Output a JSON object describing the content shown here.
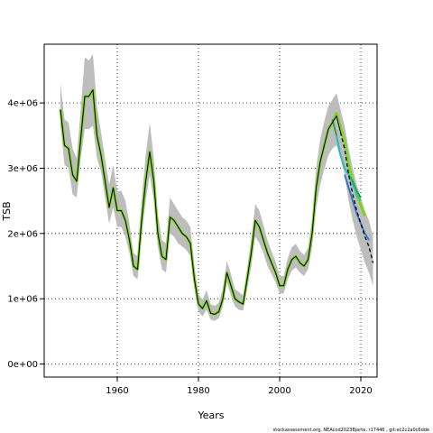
{
  "chart_data": {
    "type": "line",
    "xlabel": "Years",
    "ylabel": "TSB",
    "xlim": [
      1942,
      2024
    ],
    "ylim": [
      -200000,
      4900000
    ],
    "xticks": [
      1960,
      1980,
      2000,
      2020
    ],
    "yticks": [
      0,
      1000000,
      2000000,
      3000000,
      4000000
    ],
    "ytick_labels": [
      "0e+00",
      "1e+06",
      "2e+06",
      "3e+06",
      "4e+06"
    ],
    "grid": true,
    "footer": "stockassessment.org, NEAcod2023Bjarte, r17446 , git:ec2c2a0c6dde",
    "main": {
      "color": "#000000",
      "x": [
        1946,
        1947,
        1948,
        1949,
        1950,
        1951,
        1952,
        1953,
        1954,
        1955,
        1956,
        1957,
        1958,
        1959,
        1960,
        1961,
        1962,
        1963,
        1964,
        1965,
        1966,
        1967,
        1968,
        1969,
        1970,
        1971,
        1972,
        1973,
        1974,
        1975,
        1976,
        1977,
        1978,
        1979,
        1980,
        1981,
        1982,
        1983,
        1984,
        1985,
        1986,
        1987,
        1988,
        1989,
        1990,
        1991,
        1992,
        1993,
        1994,
        1995,
        1996,
        1997,
        1998,
        1999,
        2000,
        2001,
        2002,
        2003,
        2004,
        2005,
        2006,
        2007,
        2008,
        2009,
        2010,
        2011,
        2012,
        2013,
        2014,
        2015,
        2016,
        2017,
        2018,
        2019,
        2020,
        2021,
        2022,
        2023
      ],
      "y": [
        3900000,
        3350000,
        3300000,
        2900000,
        2800000,
        3450000,
        4100000,
        4100000,
        4200000,
        3500000,
        3200000,
        2800000,
        2400000,
        2700000,
        2350000,
        2350000,
        2200000,
        1900000,
        1500000,
        1450000,
        2200000,
        2800000,
        3250000,
        2800000,
        2000000,
        1650000,
        1600000,
        2250000,
        2200000,
        2100000,
        2000000,
        1950000,
        1850000,
        1300000,
        920000,
        850000,
        970000,
        780000,
        760000,
        800000,
        1000000,
        1400000,
        1200000,
        1000000,
        950000,
        920000,
        1300000,
        1700000,
        2200000,
        2100000,
        1900000,
        1700000,
        1550000,
        1400000,
        1200000,
        1200000,
        1450000,
        1600000,
        1650000,
        1550000,
        1500000,
        1600000,
        2000000,
        2700000,
        3100000,
        3350000,
        3600000,
        3700000,
        3800000,
        3550000,
        3300000,
        2900000,
        2600000,
        2350000,
        2150000,
        1950000,
        1800000,
        1550000
      ],
      "lower": [
        3650000,
        3050000,
        3000000,
        2600000,
        2550000,
        3150000,
        3600000,
        3600000,
        3650000,
        3150000,
        2950000,
        2550000,
        2150000,
        2400000,
        2100000,
        2100000,
        1950000,
        1700000,
        1350000,
        1300000,
        1950000,
        2500000,
        2900000,
        2500000,
        1800000,
        1450000,
        1400000,
        2000000,
        1950000,
        1850000,
        1800000,
        1750000,
        1650000,
        1150000,
        800000,
        730000,
        830000,
        680000,
        660000,
        700000,
        880000,
        1250000,
        1050000,
        880000,
        830000,
        820000,
        1150000,
        1500000,
        1950000,
        1850000,
        1700000,
        1500000,
        1380000,
        1250000,
        1080000,
        1080000,
        1300000,
        1430000,
        1480000,
        1400000,
        1350000,
        1450000,
        1800000,
        2400000,
        2750000,
        2980000,
        3200000,
        3300000,
        3350000,
        3150000,
        2900000,
        2500000,
        2200000,
        1950000,
        1750000,
        1550000,
        1400000,
        1200000
      ],
      "upper": [
        4300000,
        3750000,
        3700000,
        3300000,
        3150000,
        3900000,
        4700000,
        4650000,
        4750000,
        3950000,
        3550000,
        3150000,
        2750000,
        3050000,
        2650000,
        2650000,
        2500000,
        2150000,
        1700000,
        1650000,
        2500000,
        3200000,
        3700000,
        3150000,
        2300000,
        1900000,
        1850000,
        2550000,
        2450000,
        2350000,
        2250000,
        2200000,
        2100000,
        1500000,
        1070000,
        990000,
        1130000,
        920000,
        890000,
        940000,
        1150000,
        1580000,
        1380000,
        1150000,
        1100000,
        1050000,
        1470000,
        1920000,
        2450000,
        2350000,
        2130000,
        1900000,
        1730000,
        1570000,
        1350000,
        1350000,
        1620000,
        1790000,
        1840000,
        1730000,
        1670000,
        1780000,
        2220000,
        3000000,
        3450000,
        3720000,
        3950000,
        4050000,
        4150000,
        3900000,
        3650000,
        3300000,
        3000000,
        2750000,
        2550000,
        2350000,
        2200000,
        1950000
      ]
    },
    "retro": [
      {
        "name": "",
        "color": "#7ed321",
        "start": 1946,
        "end": 2021
      },
      {
        "name": "",
        "color": "#2a9d3a",
        "start": 2013,
        "end": 2020,
        "y": [
          3750000,
          3500000,
          3200000,
          3000000,
          2900000,
          2800000,
          2650000,
          2550000
        ]
      },
      {
        "name": "",
        "color": "#20c0c0",
        "start": 2014,
        "end": 2020,
        "y": [
          3500000,
          3200000,
          3000000,
          2900000,
          2750000,
          2600000,
          2500000
        ]
      },
      {
        "name": "",
        "color": "#3070d0",
        "start": 2016,
        "end": 2022,
        "y": [
          2900000,
          2700000,
          2500000,
          2300000,
          2150000,
          2000000,
          1900000
        ]
      }
    ]
  }
}
